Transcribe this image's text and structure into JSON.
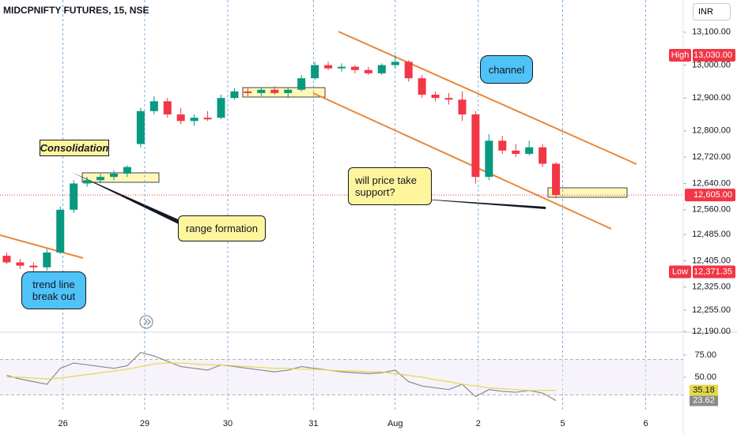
{
  "chart_data": [
    {
      "type": "candlestick",
      "title": "MIDCPNIFTY FUTURES, 15, NSE",
      "currency": "INR",
      "x": [
        0,
        1,
        2,
        3,
        4,
        5,
        6,
        7,
        8,
        9,
        10,
        11,
        12,
        13,
        14,
        15,
        16,
        17,
        18,
        19,
        20,
        21,
        22,
        23,
        24,
        25,
        26,
        27,
        28,
        29,
        30,
        31,
        32,
        33,
        34,
        35,
        36,
        37,
        38,
        39,
        40,
        41
      ],
      "open": [
        12420,
        12400,
        12390,
        12385,
        12430,
        12560,
        12640,
        12650,
        12660,
        12670,
        12760,
        12860,
        12890,
        12850,
        12830,
        12840,
        12840,
        12900,
        12920,
        12915,
        12925,
        12915,
        12925,
        12960,
        13000,
        12990,
        12995,
        12985,
        12975,
        13000,
        13010,
        12960,
        12910,
        12900,
        12895,
        12850,
        12660,
        12770,
        12740,
        12730,
        12750,
        12700
      ],
      "high": [
        12430,
        12410,
        12400,
        12440,
        12570,
        12650,
        12660,
        12670,
        12680,
        12695,
        12870,
        12905,
        12900,
        12870,
        12850,
        12860,
        12910,
        12930,
        12930,
        12930,
        12935,
        12930,
        12970,
        13010,
        13010,
        13005,
        13000,
        12995,
        13005,
        13030,
        13015,
        12970,
        12920,
        12915,
        12920,
        12860,
        12790,
        12785,
        12760,
        12770,
        12760,
        12705
      ],
      "low": [
        12395,
        12380,
        12371.35,
        12375,
        12425,
        12550,
        12630,
        12640,
        12650,
        12660,
        12750,
        12850,
        12840,
        12820,
        12815,
        12830,
        12835,
        12895,
        12905,
        12905,
        12910,
        12900,
        12920,
        12955,
        12985,
        12980,
        12975,
        12970,
        12970,
        12990,
        12950,
        12900,
        12890,
        12880,
        12830,
        12640,
        12650,
        12730,
        12720,
        12725,
        12690,
        12595
      ],
      "close": [
        12400,
        12390,
        12385,
        12430,
        12560,
        12640,
        12650,
        12660,
        12670,
        12690,
        12860,
        12890,
        12850,
        12830,
        12840,
        12835,
        12900,
        12920,
        12915,
        12925,
        12915,
        12925,
        12960,
        13000,
        12990,
        12995,
        12985,
        12975,
        13000,
        13010,
        12960,
        12910,
        12900,
        12895,
        12850,
        12660,
        12770,
        12740,
        12730,
        12750,
        12700,
        12605
      ],
      "colors": {
        "up": "#089981",
        "down": "#f23645"
      },
      "xlim": [
        -0.5,
        50.5
      ],
      "xticks": [
        {
          "value": 4.2,
          "label": "26"
        },
        {
          "value": 10.3,
          "label": "29"
        },
        {
          "value": 16.5,
          "label": "30"
        },
        {
          "value": 22.9,
          "label": "31"
        },
        {
          "value": 29.0,
          "label": "Aug"
        },
        {
          "value": 35.2,
          "label": "2"
        },
        {
          "value": 41.5,
          "label": "5"
        },
        {
          "value": 47.7,
          "label": "6"
        }
      ],
      "ylim": [
        12190,
        13198
      ],
      "yticks": [
        {
          "value": 13100,
          "label": "13,100.00"
        },
        {
          "value": 13000,
          "label": "13,000.00"
        },
        {
          "value": 12900,
          "label": "12,900.00"
        },
        {
          "value": 12800,
          "label": "12,800.00"
        },
        {
          "value": 12720,
          "label": "12,720.00"
        },
        {
          "value": 12640,
          "label": "12,640.00"
        },
        {
          "value": 12560,
          "label": "12,560.00"
        },
        {
          "value": 12485,
          "label": "12,485.00"
        },
        {
          "value": 12405,
          "label": "12,405.00"
        },
        {
          "value": 12325,
          "label": "12,325.00"
        },
        {
          "value": 12255,
          "label": "12,255.00"
        },
        {
          "value": 12190,
          "label": "12,190.00"
        }
      ],
      "last": {
        "value": 12605,
        "label": "12,605.00"
      },
      "high_marker": {
        "name": "High",
        "value": 13030,
        "label": "13,030.00"
      },
      "low_marker": {
        "name": "Low",
        "value": 12371.35,
        "label": "12,371.35"
      },
      "annotations": [
        "Consolidation",
        "range formation",
        "trend line break out",
        "channel",
        "will price take support?"
      ]
    },
    {
      "type": "line",
      "ylim": [
        12.5,
        100
      ],
      "yticks": [
        {
          "value": 75,
          "label": "75.00"
        },
        {
          "value": 50,
          "label": "50.00"
        }
      ],
      "bands": [
        70,
        30
      ],
      "series": [
        {
          "color": "#8a8a8a",
          "values": [
            52,
            48,
            45,
            42,
            60,
            66,
            64,
            62,
            60,
            63,
            78,
            74,
            68,
            62,
            60,
            58,
            64,
            62,
            60,
            58,
            56,
            58,
            62,
            60,
            58,
            56,
            55,
            54,
            55,
            58,
            45,
            40,
            38,
            36,
            42,
            28,
            36,
            34,
            33,
            35,
            32,
            23.62
          ],
          "value_label": "23.62"
        },
        {
          "color": "#e6d84a",
          "values": [
            50,
            50,
            49,
            48,
            49,
            51,
            53,
            55,
            57,
            59,
            62,
            65,
            66,
            66,
            65,
            64,
            64,
            63,
            62,
            61,
            60,
            60,
            59,
            59,
            58,
            57,
            57,
            56,
            56,
            54,
            52,
            50,
            47,
            45,
            42,
            40,
            38,
            37,
            36,
            35,
            35,
            35.18
          ],
          "value_label": "35.18"
        }
      ]
    }
  ]
}
